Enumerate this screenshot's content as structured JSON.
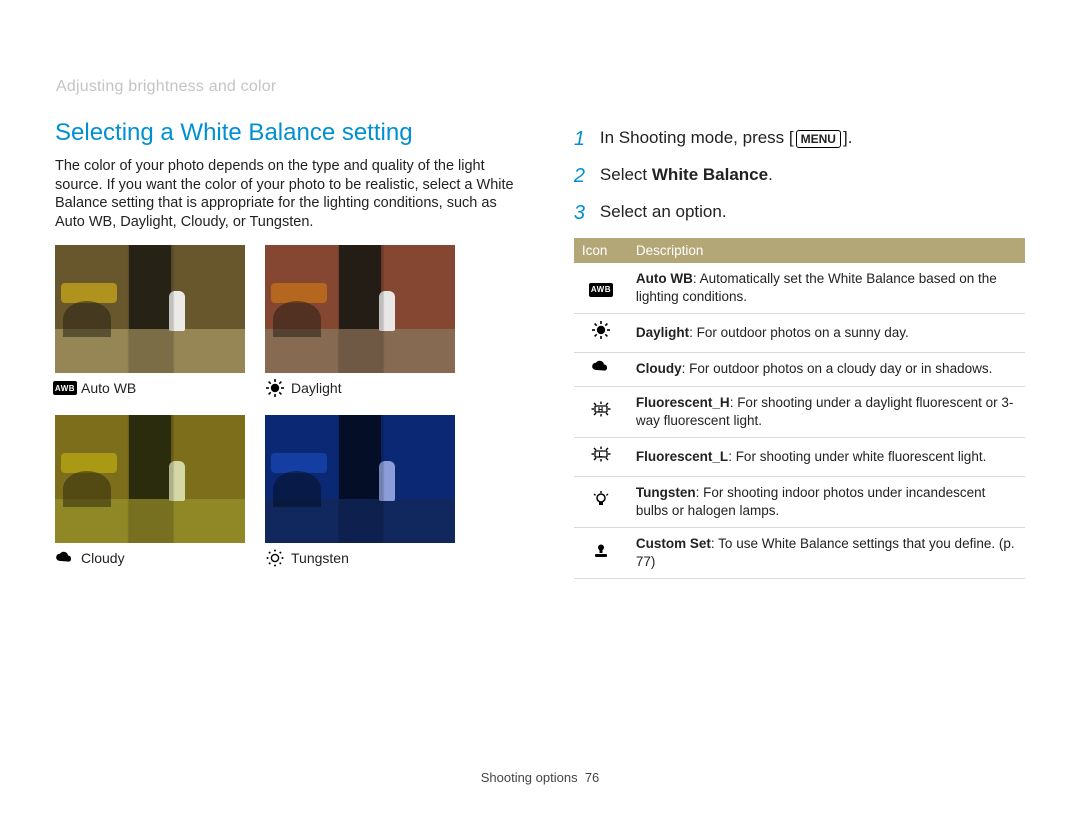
{
  "breadcrumb": "Adjusting brightness and color",
  "section_title": "Selecting a White Balance setting",
  "intro": "The color of your photo depends on the type and quality of the light source. If you want the color of your photo to be realistic, select a White Balance setting that is appropriate for the lighting conditions, such as Auto WB, Daylight, Cloudy, or Tungsten.",
  "samples": [
    {
      "label": "Auto WB",
      "icon": "awb",
      "palette": {
        "wall_l": "#6b5a2f",
        "wall_r": "#6b5a2f",
        "alley": "#2f2a1a",
        "ground": "#9a8a5a",
        "tint": "rgba(120,100,40,0.05)",
        "flowers": "#d4b018",
        "bike": "#2a2416",
        "person": "#f2f2f2"
      }
    },
    {
      "label": "Daylight",
      "icon": "sun",
      "palette": {
        "wall_l": "#8a4a34",
        "wall_r": "#8a4a34",
        "alley": "#2c241c",
        "ground": "#8c7056",
        "tint": "rgba(60,30,20,0.05)",
        "flowers": "#d47a18",
        "bike": "#2a2018",
        "person": "#f2f2f2"
      }
    },
    {
      "label": "Cloudy",
      "icon": "cloud",
      "palette": {
        "wall_l": "#8a7a22",
        "wall_r": "#8a7a22",
        "alley": "#3a3a14",
        "ground": "#a09832",
        "tint": "rgba(150,150,30,0.25)",
        "flowers": "#d4c018",
        "bike": "#343010",
        "person": "#eef0d4"
      }
    },
    {
      "label": "Tungsten",
      "icon": "bulb-dots",
      "palette": {
        "wall_l": "#103a8a",
        "wall_r": "#103a8a",
        "alley": "#061838",
        "ground": "#1a3a70",
        "tint": "rgba(20,50,160,0.40)",
        "flowers": "#2a6ad4",
        "bike": "#081428",
        "person": "#dce8ff"
      }
    }
  ],
  "steps": [
    {
      "num": "1",
      "pre": "In Shooting mode, press [",
      "btn": "MENU",
      "post": "]."
    },
    {
      "num": "2",
      "pre": "Select ",
      "bold": "White Balance",
      "post": "."
    },
    {
      "num": "3",
      "pre": "Select an option.",
      "bold": "",
      "post": ""
    }
  ],
  "table": {
    "headers": {
      "icon": "Icon",
      "desc": "Description"
    },
    "rows": [
      {
        "icon": "awb",
        "bold": "Auto WB",
        "text": ": Automatically set the White Balance based on the lighting conditions."
      },
      {
        "icon": "sun",
        "bold": "Daylight",
        "text": ": For outdoor photos on a sunny day."
      },
      {
        "icon": "cloud",
        "bold": "Cloudy",
        "text": ": For outdoor photos on a cloudy day or in shadows."
      },
      {
        "icon": "fluor-h",
        "bold": "Fluorescent_H",
        "text": ": For shooting under a daylight fluorescent or 3-way fluorescent light."
      },
      {
        "icon": "fluor-l",
        "bold": "Fluorescent_L",
        "text": ": For shooting under white fluorescent light."
      },
      {
        "icon": "bulb",
        "bold": "Tungsten",
        "text": ": For shooting indoor photos under incandescent bulbs or halogen lamps."
      },
      {
        "icon": "custom",
        "bold": "Custom Set",
        "text": ": To use White Balance settings that you define. (p. 77)"
      }
    ]
  },
  "footer": {
    "label": "Shooting options",
    "page": "76"
  },
  "colors": {
    "accent": "#0090d2",
    "table_header_bg": "#b3a777",
    "breadcrumb": "#c4c4c4"
  }
}
